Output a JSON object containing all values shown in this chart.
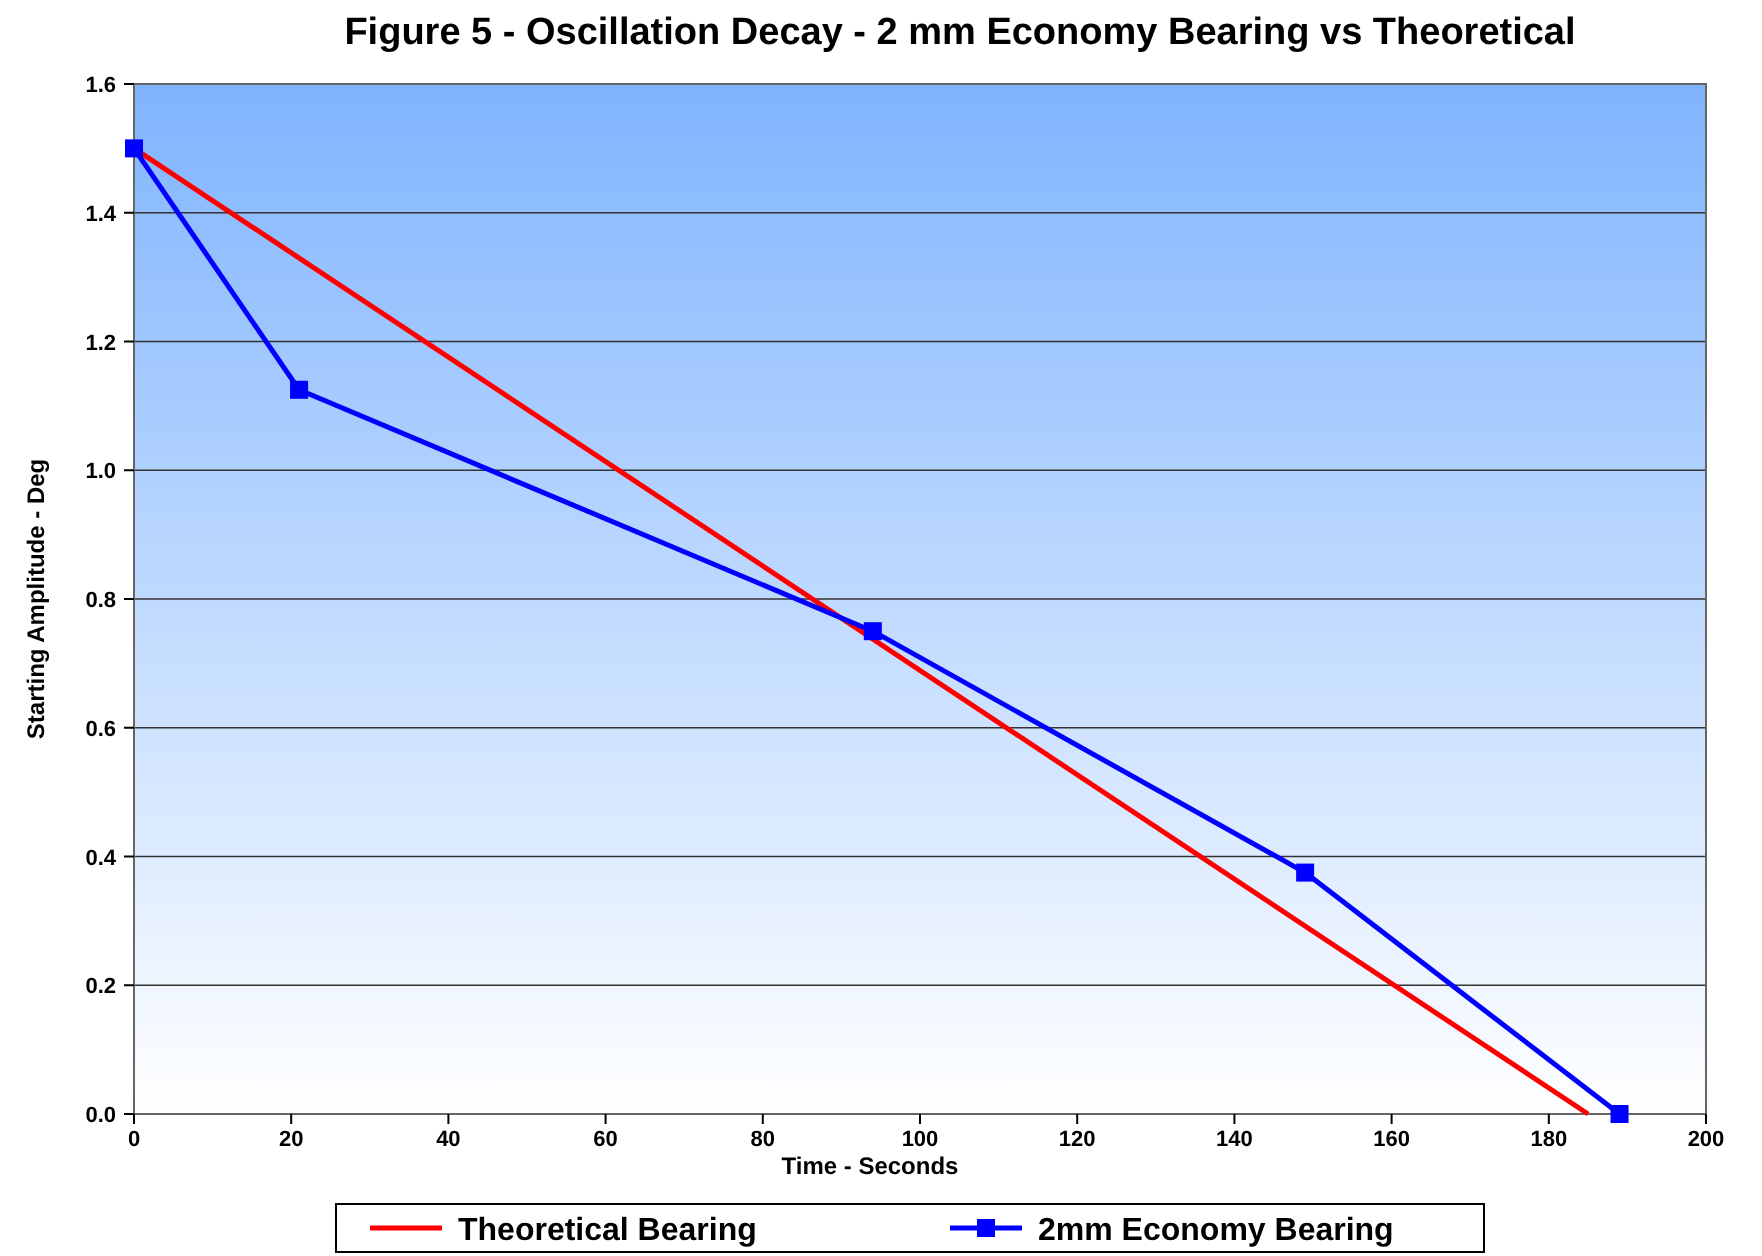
{
  "chart_data": {
    "type": "line",
    "title": "Figure 5 - Oscillation Decay - 2 mm Economy Bearing vs Theoretical",
    "xlabel": "Time - Seconds",
    "ylabel": "Starting Amplitude - Deg",
    "xlim": [
      0,
      200
    ],
    "xticks": [
      0,
      20,
      40,
      60,
      80,
      100,
      120,
      140,
      160,
      180,
      200
    ],
    "ylim": [
      0,
      1.6
    ],
    "yticks": [
      {
        "value": 0,
        "label": "0.0"
      },
      {
        "value": 0.2,
        "label": "0.2"
      },
      {
        "value": 0.4,
        "label": "0.4"
      },
      {
        "value": 0.6,
        "label": "0.6"
      },
      {
        "value": 0.8,
        "label": "0.8"
      },
      {
        "value": 1,
        "label": "1.0"
      },
      {
        "value": 1.2,
        "label": "1.2"
      },
      {
        "value": 1.4,
        "label": "1.4"
      },
      {
        "value": 1.6,
        "label": "1.6"
      }
    ],
    "grid": "y",
    "legend": "bottom",
    "line_style": "solid",
    "series": [
      {
        "name": "Theoretical Bearing",
        "color": "#ff0000",
        "marker": "none",
        "x": [
          0,
          185
        ],
        "values": [
          1.5,
          0
        ]
      },
      {
        "name": "2mm Economy Bearing",
        "color": "#0000ff",
        "marker": "square",
        "x": [
          0,
          21,
          94,
          149,
          189
        ],
        "values": [
          1.5,
          1.125,
          0.75,
          0.375,
          0
        ]
      }
    ]
  }
}
